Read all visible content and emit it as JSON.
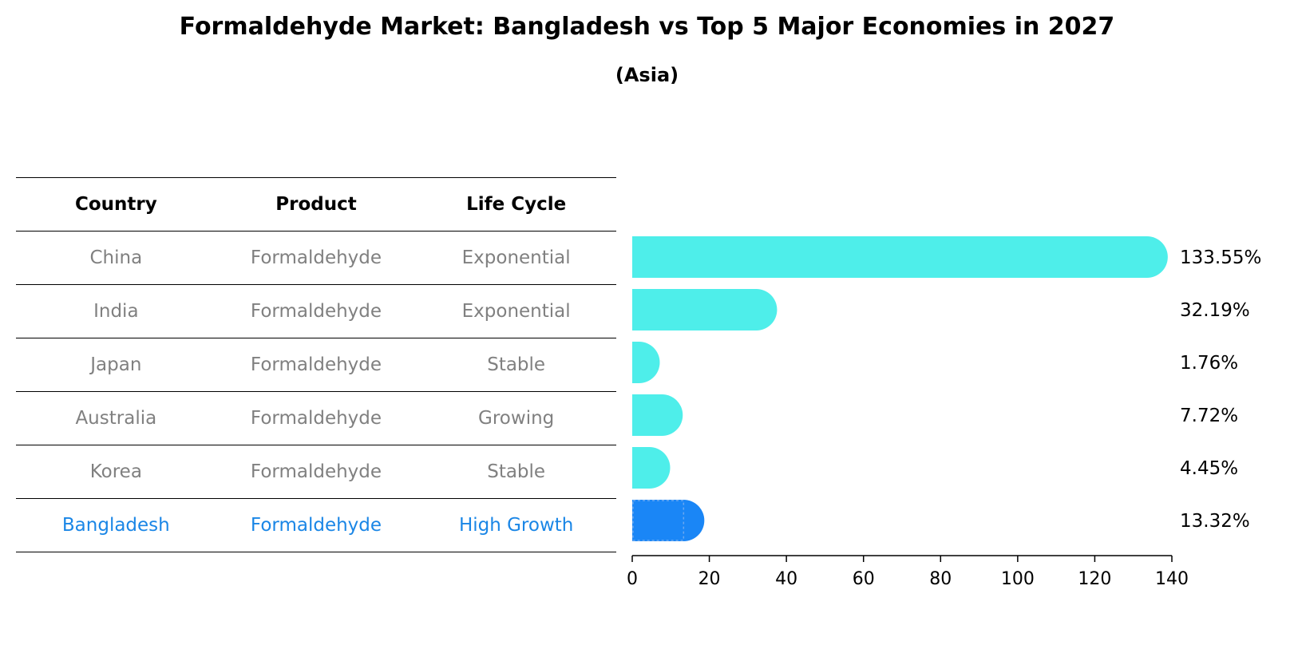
{
  "title": "Formaldehyde Market: Bangladesh vs Top 5 Major Economies in 2027",
  "subtitle": "(Asia)",
  "table": {
    "headers": [
      "Country",
      "Product",
      "Life Cycle"
    ],
    "rows": [
      {
        "country": "China",
        "product": "Formaldehyde",
        "life_cycle": "Exponential",
        "highlight": false
      },
      {
        "country": "India",
        "product": "Formaldehyde",
        "life_cycle": "Exponential",
        "highlight": false
      },
      {
        "country": "Japan",
        "product": "Formaldehyde",
        "life_cycle": "Stable",
        "highlight": false
      },
      {
        "country": "Australia",
        "product": "Formaldehyde",
        "life_cycle": "Growing",
        "highlight": false
      },
      {
        "country": "Korea",
        "product": "Formaldehyde",
        "life_cycle": "Stable",
        "highlight": false
      },
      {
        "country": "Bangladesh",
        "product": "Formaldehyde",
        "life_cycle": "High Growth",
        "highlight": true
      }
    ]
  },
  "chart_data": {
    "type": "bar",
    "orientation": "horizontal",
    "title": "Formaldehyde Market: Bangladesh vs Top 5 Major Economies in 2027",
    "subtitle": "(Asia)",
    "categories": [
      "China",
      "India",
      "Japan",
      "Australia",
      "Korea",
      "Bangladesh"
    ],
    "values": [
      133.55,
      32.19,
      1.76,
      7.72,
      4.45,
      13.32
    ],
    "value_labels": [
      "133.55%",
      "32.19%",
      "1.76%",
      "7.72%",
      "4.45%",
      "13.32%"
    ],
    "xlim": [
      0,
      140
    ],
    "xticks": [
      0,
      20,
      40,
      60,
      80,
      100,
      120,
      140
    ],
    "xlabel": "",
    "ylabel": "",
    "grid": false,
    "colors": {
      "default": "#4eeeea",
      "highlight": "#1a86f6"
    },
    "highlight_category": "Bangladesh"
  }
}
